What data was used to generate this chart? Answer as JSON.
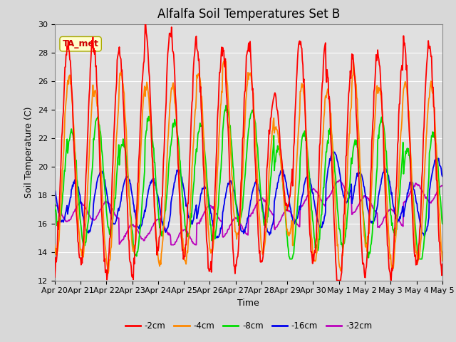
{
  "title": "Alfalfa Soil Temperatures Set B",
  "xlabel": "Time",
  "ylabel": "Soil Temperature (C)",
  "ylim": [
    12,
    30
  ],
  "n_days": 15,
  "xtick_labels": [
    "Apr 20",
    "Apr 21",
    "Apr 22",
    "Apr 23",
    "Apr 24",
    "Apr 25",
    "Apr 26",
    "Apr 27",
    "Apr 28",
    "Apr 29",
    "Apr 30",
    "May 1",
    "May 2",
    "May 3",
    "May 4",
    "May 5"
  ],
  "series_colors": {
    "-2cm": "#ff0000",
    "-4cm": "#ff8800",
    "-8cm": "#00dd00",
    "-16cm": "#0000ee",
    "-32cm": "#bb00bb"
  },
  "annotation_label": "TA_met",
  "annotation_color": "#cc0000",
  "annotation_bg": "#ffffcc",
  "annotation_edge": "#aaaa00",
  "fig_bg": "#d8d8d8",
  "plot_bg": "#e0e0e0",
  "grid_color": "#ffffff",
  "legend_colors": [
    "#ff0000",
    "#ff8800",
    "#00dd00",
    "#0000ee",
    "#bb00bb"
  ],
  "legend_labels": [
    "-2cm",
    "-4cm",
    "-8cm",
    "-16cm",
    "-32cm"
  ],
  "title_fontsize": 12,
  "axis_label_fontsize": 9,
  "tick_fontsize": 8,
  "linewidth": 1.3
}
